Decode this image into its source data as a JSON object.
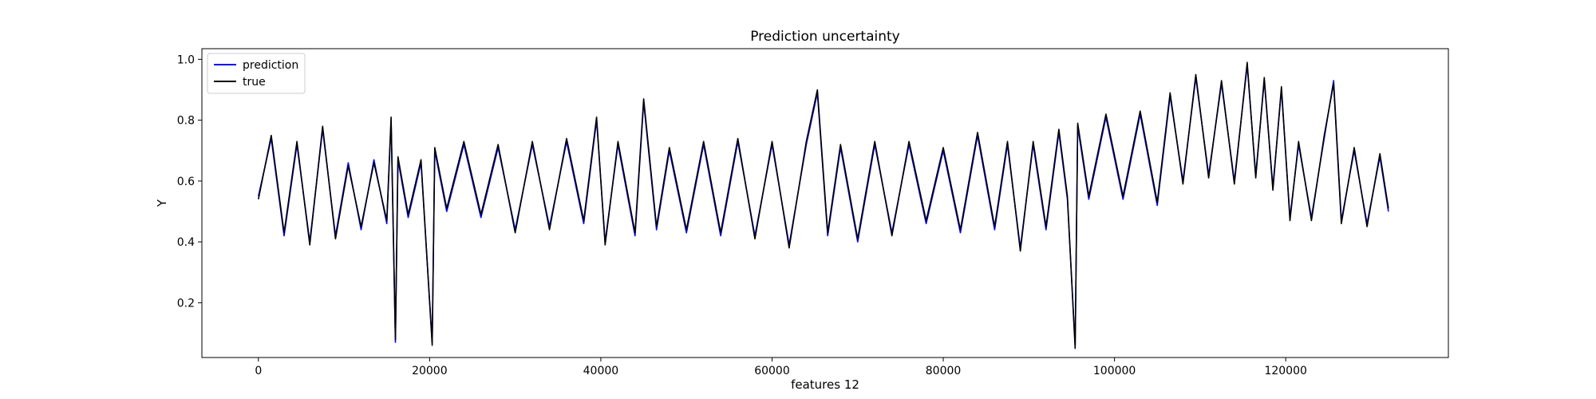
{
  "chart_data": {
    "type": "line",
    "title": "Prediction uncertainty",
    "xlabel": "features 12",
    "ylabel": "Y",
    "xlim": [
      -6600,
      139000
    ],
    "ylim": [
      0.02,
      1.035
    ],
    "xticks": [
      0,
      20000,
      40000,
      60000,
      80000,
      100000,
      120000
    ],
    "xtick_labels": [
      "0",
      "20000",
      "40000",
      "60000",
      "80000",
      "100000",
      "120000"
    ],
    "yticks": [
      0.2,
      0.4,
      0.6,
      0.8,
      1.0
    ],
    "ytick_labels": [
      "0.2",
      "0.4",
      "0.6",
      "0.8",
      "1.0"
    ],
    "grid": false,
    "legend_position": "top-left",
    "colors": {
      "prediction": "#0000ff",
      "true": "#000000"
    },
    "series": [
      {
        "name": "prediction",
        "color": "#0000ff",
        "x": [
          0,
          1500,
          3000,
          4500,
          6000,
          7500,
          9000,
          10500,
          12000,
          13500,
          15000,
          15500,
          16000,
          16300,
          17500,
          19000,
          20300,
          20600,
          22000,
          24000,
          26000,
          28000,
          30000,
          32000,
          34000,
          36000,
          38000,
          39500,
          40500,
          42000,
          44000,
          45000,
          46500,
          48000,
          50000,
          52000,
          54000,
          56000,
          58000,
          60000,
          62000,
          64000,
          65300,
          66500,
          68000,
          70000,
          72000,
          74000,
          76000,
          78000,
          80000,
          82000,
          84000,
          86000,
          87500,
          89000,
          90500,
          92000,
          93500,
          94500,
          95400,
          95700,
          97000,
          99000,
          101000,
          103000,
          105000,
          106500,
          108000,
          109500,
          111000,
          112500,
          114000,
          115500,
          116500,
          117500,
          118500,
          119500,
          120500,
          121500,
          123000,
          124500,
          125600,
          126500,
          128000,
          129500,
          131000,
          132000
        ],
        "y": [
          0.55,
          0.74,
          0.42,
          0.72,
          0.4,
          0.77,
          0.42,
          0.66,
          0.44,
          0.67,
          0.46,
          0.8,
          0.07,
          0.67,
          0.48,
          0.66,
          0.07,
          0.7,
          0.5,
          0.72,
          0.48,
          0.71,
          0.44,
          0.72,
          0.45,
          0.73,
          0.46,
          0.8,
          0.4,
          0.72,
          0.42,
          0.86,
          0.44,
          0.7,
          0.43,
          0.72,
          0.42,
          0.73,
          0.42,
          0.72,
          0.39,
          0.72,
          0.89,
          0.42,
          0.71,
          0.4,
          0.72,
          0.43,
          0.72,
          0.46,
          0.7,
          0.43,
          0.75,
          0.44,
          0.72,
          0.38,
          0.72,
          0.44,
          0.76,
          0.54,
          0.06,
          0.78,
          0.54,
          0.81,
          0.54,
          0.82,
          0.52,
          0.88,
          0.6,
          0.94,
          0.62,
          0.92,
          0.6,
          0.98,
          0.62,
          0.93,
          0.58,
          0.9,
          0.48,
          0.72,
          0.48,
          0.74,
          0.93,
          0.47,
          0.7,
          0.46,
          0.68,
          0.5
        ]
      },
      {
        "name": "true",
        "color": "#000000",
        "x": [
          0,
          1500,
          3000,
          4500,
          6000,
          7500,
          9000,
          10500,
          12000,
          13500,
          15000,
          15500,
          16000,
          16300,
          17500,
          19000,
          20300,
          20600,
          22000,
          24000,
          26000,
          28000,
          30000,
          32000,
          34000,
          36000,
          38000,
          39500,
          40500,
          42000,
          44000,
          45000,
          46500,
          48000,
          50000,
          52000,
          54000,
          56000,
          58000,
          60000,
          62000,
          64000,
          65300,
          66500,
          68000,
          70000,
          72000,
          74000,
          76000,
          78000,
          80000,
          82000,
          84000,
          86000,
          87500,
          89000,
          90500,
          92000,
          93500,
          94500,
          95400,
          95700,
          97000,
          99000,
          101000,
          103000,
          105000,
          106500,
          108000,
          109500,
          111000,
          112500,
          114000,
          115500,
          116500,
          117500,
          118500,
          119500,
          120500,
          121500,
          123000,
          124500,
          125600,
          126500,
          128000,
          129500,
          131000,
          132000
        ],
        "y": [
          0.54,
          0.75,
          0.43,
          0.73,
          0.39,
          0.78,
          0.41,
          0.65,
          0.45,
          0.66,
          0.47,
          0.81,
          0.08,
          0.68,
          0.49,
          0.67,
          0.06,
          0.71,
          0.51,
          0.73,
          0.49,
          0.72,
          0.43,
          0.73,
          0.44,
          0.74,
          0.47,
          0.81,
          0.39,
          0.73,
          0.43,
          0.87,
          0.45,
          0.71,
          0.44,
          0.73,
          0.43,
          0.74,
          0.41,
          0.73,
          0.38,
          0.73,
          0.9,
          0.43,
          0.72,
          0.41,
          0.73,
          0.42,
          0.73,
          0.47,
          0.71,
          0.44,
          0.76,
          0.45,
          0.73,
          0.37,
          0.73,
          0.45,
          0.77,
          0.55,
          0.05,
          0.79,
          0.55,
          0.82,
          0.55,
          0.83,
          0.53,
          0.89,
          0.59,
          0.95,
          0.61,
          0.93,
          0.59,
          0.99,
          0.61,
          0.94,
          0.57,
          0.91,
          0.47,
          0.73,
          0.47,
          0.75,
          0.92,
          0.46,
          0.71,
          0.45,
          0.69,
          0.51
        ]
      }
    ]
  }
}
